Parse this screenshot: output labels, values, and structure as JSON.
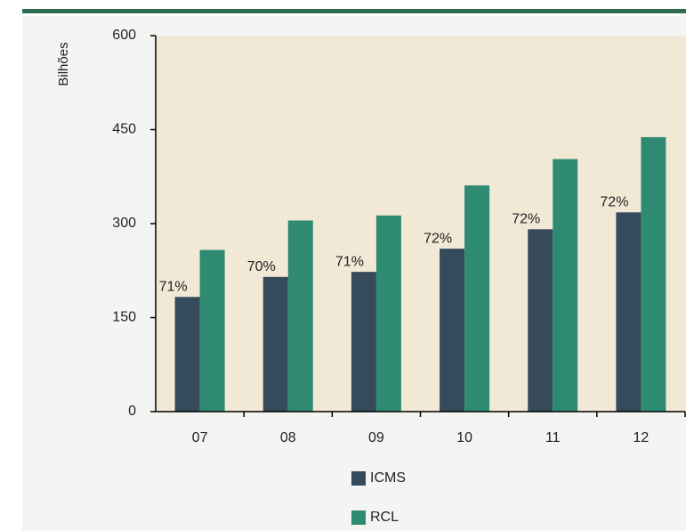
{
  "chart_data": {
    "type": "bar",
    "ylabel": "Bilhões",
    "categories": [
      "07",
      "08",
      "09",
      "10",
      "11",
      "12"
    ],
    "series": [
      {
        "name": "ICMS",
        "color": "#354a5a",
        "values": [
          183,
          215,
          223,
          260,
          291,
          318
        ]
      },
      {
        "name": "RCL",
        "color": "#2f8a72",
        "values": [
          258,
          305,
          313,
          361,
          403,
          438
        ]
      }
    ],
    "annotations": [
      "71%",
      "70%",
      "71%",
      "72%",
      "72%",
      "72%"
    ],
    "ylim": [
      0,
      600
    ],
    "yticks": [
      0,
      150,
      300,
      450,
      600
    ]
  }
}
